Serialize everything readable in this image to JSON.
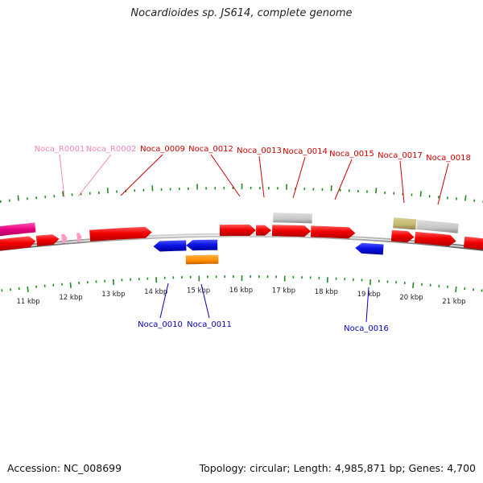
{
  "title": "Nocardioides sp. JS614, complete genome",
  "footer": {
    "accession": "Accession: NC_008699",
    "summary": "Topology: circular; Length: 4,985,871 bp; Genes: 4,700"
  },
  "colors": {
    "forward_cds": "#f40000",
    "reverse_cds": "#0a14e6",
    "rna": "#ff9ac8",
    "repeat_region": "#e6007e",
    "gray_feature": "#c8c8c8",
    "olive_feature": "#c8bd78",
    "orange_feature": "#ff8c00",
    "tick": "#1e8c1e",
    "label_forward": "#cc0000",
    "label_reverse": "#0000c0",
    "label_rna": "#ee88bb"
  },
  "axis": {
    "ticks_kbp": [
      {
        "kbp": 11,
        "label": "11 kbp"
      },
      {
        "kbp": 12,
        "label": "12 kbp"
      },
      {
        "kbp": 13,
        "label": "13 kbp"
      },
      {
        "kbp": 14,
        "label": "14 kbp"
      },
      {
        "kbp": 15,
        "label": "15 kbp"
      },
      {
        "kbp": 16,
        "label": "16 kbp"
      },
      {
        "kbp": 17,
        "label": "17 kbp"
      },
      {
        "kbp": 18,
        "label": "18 kbp"
      },
      {
        "kbp": 19,
        "label": "19 kbp"
      },
      {
        "kbp": 20,
        "label": "20 kbp"
      },
      {
        "kbp": 21,
        "label": "21 kbp"
      }
    ]
  },
  "features": [
    {
      "id": "repeat-left",
      "type": "repeat_region",
      "strand": "+",
      "label": ""
    },
    {
      "id": "cds-left-1",
      "type": "cds",
      "strand": "+",
      "label": ""
    },
    {
      "id": "cds-left-2",
      "type": "cds",
      "strand": "+",
      "label": ""
    },
    {
      "id": "Noca_R0001",
      "type": "rna",
      "strand": "+",
      "label": "Noca_R0001"
    },
    {
      "id": "Noca_R0002",
      "type": "rna",
      "strand": "+",
      "label": "Noca_R0002"
    },
    {
      "id": "Noca_0009",
      "type": "cds",
      "strand": "+",
      "label": "Noca_0009"
    },
    {
      "id": "Noca_0010",
      "type": "cds",
      "strand": "-",
      "label": "Noca_0010"
    },
    {
      "id": "Noca_0011",
      "type": "cds",
      "strand": "-",
      "label": "Noca_0011"
    },
    {
      "id": "orange-15k",
      "type": "misc",
      "strand": "-",
      "label": ""
    },
    {
      "id": "Noca_0012",
      "type": "cds",
      "strand": "+",
      "label": "Noca_0012"
    },
    {
      "id": "Noca_0013",
      "type": "cds",
      "strand": "+",
      "label": "Noca_0013"
    },
    {
      "id": "gray-17k",
      "type": "misc",
      "strand": "+",
      "label": ""
    },
    {
      "id": "Noca_0014",
      "type": "cds",
      "strand": "+",
      "label": "Noca_0014"
    },
    {
      "id": "Noca_0015",
      "type": "cds",
      "strand": "+",
      "label": "Noca_0015"
    },
    {
      "id": "Noca_0016",
      "type": "cds",
      "strand": "-",
      "label": "Noca_0016"
    },
    {
      "id": "olive-20k",
      "type": "misc",
      "strand": "+",
      "label": ""
    },
    {
      "id": "gray-20k",
      "type": "misc",
      "strand": "+",
      "label": ""
    },
    {
      "id": "Noca_0017",
      "type": "cds",
      "strand": "+",
      "label": "Noca_0017"
    },
    {
      "id": "Noca_0018",
      "type": "cds",
      "strand": "+",
      "label": "Noca_0018"
    },
    {
      "id": "cds-right",
      "type": "cds",
      "strand": "+",
      "label": ""
    }
  ]
}
